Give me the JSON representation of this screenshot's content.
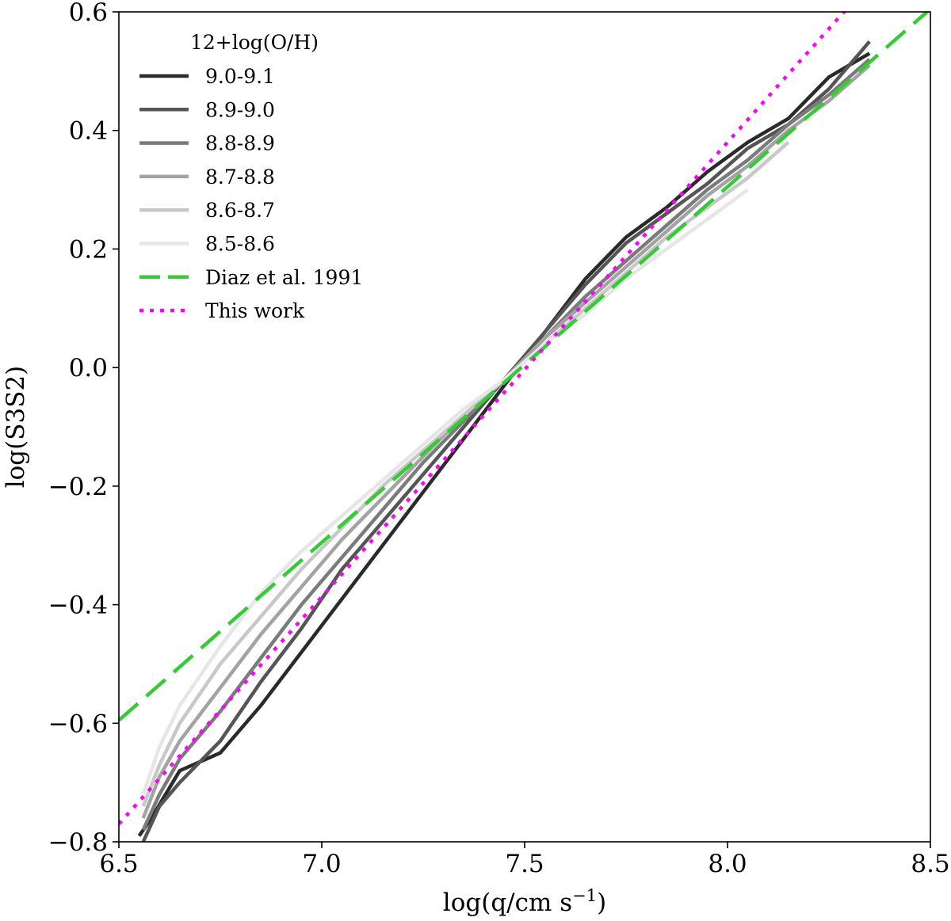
{
  "chart_data": {
    "type": "line",
    "xlabel": "log(q/cm s",
    "xlabel_sup": "−1",
    "xlabel_close": ")",
    "ylabel": "log(S3S2)",
    "xlim": [
      6.5,
      8.5
    ],
    "ylim": [
      -0.8,
      0.6
    ],
    "x_ticks": [
      6.5,
      7.0,
      7.5,
      8.0,
      8.5
    ],
    "x_tick_labels": [
      "6.5",
      "7.0",
      "7.5",
      "8.0",
      "8.5"
    ],
    "y_ticks": [
      -0.8,
      -0.6,
      -0.4,
      -0.2,
      0.0,
      0.2,
      0.4,
      0.6
    ],
    "y_tick_labels": [
      "−0.8",
      "−0.6",
      "−0.4",
      "−0.2",
      "0.0",
      "0.2",
      "0.4",
      "0.6"
    ],
    "grid": false,
    "legend_title": "12+log(O/H)",
    "legend_position": "upper-left",
    "series": [
      {
        "name": "9.0-9.1",
        "color": "#2a2a2a",
        "style": "solid",
        "x": [
          6.55,
          6.58,
          6.65,
          6.75,
          6.85,
          6.95,
          7.05,
          7.15,
          7.25,
          7.35,
          7.45,
          7.55,
          7.65,
          7.75,
          7.85,
          7.95,
          8.05,
          8.15,
          8.25,
          8.35
        ],
        "y": [
          -0.79,
          -0.76,
          -0.68,
          -0.65,
          -0.57,
          -0.48,
          -0.39,
          -0.3,
          -0.21,
          -0.12,
          -0.03,
          0.06,
          0.15,
          0.22,
          0.27,
          0.33,
          0.38,
          0.42,
          0.49,
          0.53
        ]
      },
      {
        "name": "8.9-9.0",
        "color": "#555555",
        "style": "solid",
        "x": [
          6.56,
          6.6,
          6.65,
          6.75,
          6.85,
          6.95,
          7.05,
          7.15,
          7.25,
          7.35,
          7.45,
          7.55,
          7.65,
          7.75,
          7.85,
          7.95,
          8.05,
          8.15,
          8.25,
          8.35
        ],
        "y": [
          -0.8,
          -0.74,
          -0.7,
          -0.63,
          -0.53,
          -0.44,
          -0.34,
          -0.26,
          -0.18,
          -0.1,
          -0.02,
          0.06,
          0.14,
          0.21,
          0.26,
          0.31,
          0.37,
          0.41,
          0.47,
          0.55
        ]
      },
      {
        "name": "8.8-8.9",
        "color": "#7b7b7b",
        "style": "solid",
        "x": [
          6.56,
          6.6,
          6.65,
          6.75,
          6.85,
          6.95,
          7.05,
          7.15,
          7.25,
          7.35,
          7.45,
          7.55,
          7.65,
          7.75,
          7.85,
          7.95,
          8.05,
          8.15,
          8.25,
          8.35
        ],
        "y": [
          -0.78,
          -0.72,
          -0.66,
          -0.58,
          -0.49,
          -0.4,
          -0.32,
          -0.24,
          -0.16,
          -0.09,
          -0.02,
          0.05,
          0.12,
          0.18,
          0.24,
          0.3,
          0.35,
          0.41,
          0.46,
          0.52
        ]
      },
      {
        "name": "8.7-8.8",
        "color": "#a3a3a3",
        "style": "solid",
        "x": [
          6.56,
          6.6,
          6.65,
          6.75,
          6.85,
          6.95,
          7.05,
          7.15,
          7.25,
          7.35,
          7.45,
          7.55,
          7.65,
          7.75,
          7.85,
          7.95,
          8.05,
          8.15,
          8.25,
          8.35
        ],
        "y": [
          -0.76,
          -0.69,
          -0.63,
          -0.54,
          -0.45,
          -0.37,
          -0.29,
          -0.22,
          -0.15,
          -0.08,
          -0.02,
          0.05,
          0.11,
          0.17,
          0.23,
          0.29,
          0.34,
          0.4,
          0.45,
          0.51
        ]
      },
      {
        "name": "8.6-8.7",
        "color": "#c8c8c8",
        "style": "solid",
        "x": [
          6.56,
          6.6,
          6.65,
          6.75,
          6.85,
          6.95,
          7.05,
          7.15,
          7.25,
          7.35,
          7.45,
          7.55,
          7.65,
          7.75,
          7.85,
          7.95,
          8.05,
          8.15
        ],
        "y": [
          -0.74,
          -0.67,
          -0.6,
          -0.5,
          -0.42,
          -0.34,
          -0.27,
          -0.2,
          -0.14,
          -0.08,
          -0.02,
          0.04,
          0.1,
          0.16,
          0.22,
          0.27,
          0.32,
          0.38
        ]
      },
      {
        "name": "8.5-8.6",
        "color": "#e6e6e6",
        "style": "solid",
        "x": [
          6.56,
          6.6,
          6.65,
          6.75,
          6.85,
          6.95,
          7.05,
          7.15,
          7.25,
          7.35,
          7.45,
          7.55,
          7.65,
          7.75,
          7.85,
          7.95,
          8.05
        ],
        "y": [
          -0.72,
          -0.64,
          -0.57,
          -0.47,
          -0.38,
          -0.31,
          -0.25,
          -0.19,
          -0.13,
          -0.07,
          -0.02,
          0.04,
          0.09,
          0.15,
          0.2,
          0.25,
          0.3
        ]
      },
      {
        "name": "Diaz et al. 1991",
        "color": "#33cc33",
        "style": "dashed",
        "x": [
          6.5,
          8.5
        ],
        "y": [
          -0.595,
          0.605
        ]
      },
      {
        "name": "This work",
        "color": "#ff00ff",
        "style": "dotted",
        "x": [
          6.5,
          8.3
        ],
        "y": [
          -0.77,
          0.61
        ]
      }
    ]
  }
}
